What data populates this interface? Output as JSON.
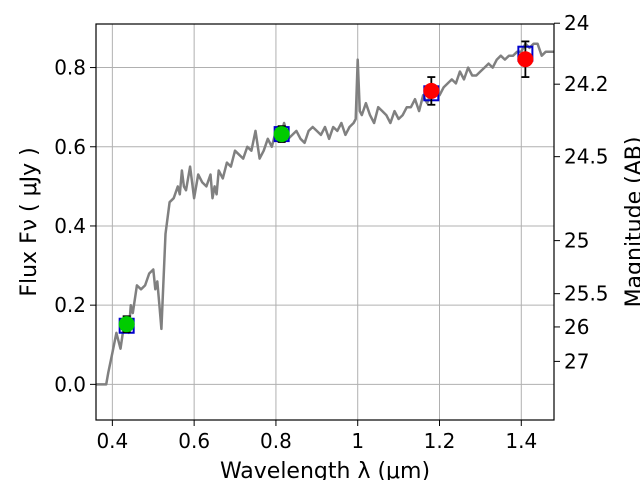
{
  "chart_data": {
    "type": "scatter",
    "xlabel": "Wavelength  λ (μm)",
    "ylabel": "Flux  Fν  ( μJy )",
    "y2label": "Magnitude (AB)",
    "xlim": [
      0.36,
      1.48
    ],
    "ylim": [
      -0.09,
      0.91
    ],
    "grid": true,
    "x_ticks": [
      0.4,
      0.6,
      0.8,
      1.0,
      1.2,
      1.4
    ],
    "x_tick_labels": [
      "0.4",
      "0.6",
      "0.8",
      "1",
      "1.2",
      "1.4"
    ],
    "y_ticks": [
      0.0,
      0.2,
      0.4,
      0.6,
      0.8
    ],
    "y_tick_labels": [
      "0.0",
      "0.2",
      "0.4",
      "0.6",
      "0.8"
    ],
    "y2_ticks": [
      {
        "label": "24",
        "flux": 0.912
      },
      {
        "label": "24.2",
        "flux": 0.758
      },
      {
        "label": "24.5",
        "flux": 0.575
      },
      {
        "label": "25",
        "flux": 0.363
      },
      {
        "label": "25.5",
        "flux": 0.229
      },
      {
        "label": "26",
        "flux": 0.145
      },
      {
        "label": "27",
        "flux": 0.058
      }
    ],
    "model_spectrum": {
      "color": "#808080",
      "x": [
        0.36,
        0.385,
        0.39,
        0.4,
        0.41,
        0.42,
        0.43,
        0.44,
        0.445,
        0.45,
        0.46,
        0.47,
        0.48,
        0.49,
        0.5,
        0.505,
        0.51,
        0.515,
        0.52,
        0.53,
        0.54,
        0.55,
        0.56,
        0.565,
        0.57,
        0.575,
        0.58,
        0.59,
        0.6,
        0.61,
        0.62,
        0.63,
        0.64,
        0.645,
        0.65,
        0.655,
        0.66,
        0.67,
        0.68,
        0.69,
        0.7,
        0.71,
        0.72,
        0.73,
        0.74,
        0.75,
        0.76,
        0.77,
        0.78,
        0.79,
        0.8,
        0.81,
        0.82,
        0.83,
        0.84,
        0.85,
        0.86,
        0.87,
        0.88,
        0.89,
        0.9,
        0.91,
        0.92,
        0.93,
        0.94,
        0.95,
        0.96,
        0.97,
        0.98,
        0.99,
        0.995,
        1.0,
        1.005,
        1.01,
        1.02,
        1.03,
        1.04,
        1.05,
        1.06,
        1.07,
        1.08,
        1.09,
        1.1,
        1.11,
        1.12,
        1.13,
        1.14,
        1.15,
        1.16,
        1.17,
        1.18,
        1.19,
        1.2,
        1.21,
        1.22,
        1.23,
        1.24,
        1.25,
        1.26,
        1.27,
        1.28,
        1.29,
        1.3,
        1.31,
        1.32,
        1.33,
        1.34,
        1.35,
        1.36,
        1.37,
        1.38,
        1.39,
        1.4,
        1.41,
        1.42,
        1.43,
        1.44,
        1.45,
        1.46,
        1.47,
        1.48
      ],
      "y": [
        0.0,
        0.0,
        0.03,
        0.08,
        0.13,
        0.09,
        0.16,
        0.13,
        0.2,
        0.18,
        0.25,
        0.24,
        0.25,
        0.28,
        0.29,
        0.24,
        0.26,
        0.2,
        0.14,
        0.38,
        0.46,
        0.47,
        0.5,
        0.48,
        0.54,
        0.5,
        0.49,
        0.55,
        0.47,
        0.53,
        0.51,
        0.5,
        0.53,
        0.47,
        0.5,
        0.48,
        0.54,
        0.52,
        0.56,
        0.55,
        0.59,
        0.58,
        0.57,
        0.6,
        0.59,
        0.64,
        0.57,
        0.59,
        0.62,
        0.6,
        0.64,
        0.62,
        0.66,
        0.62,
        0.63,
        0.64,
        0.62,
        0.61,
        0.64,
        0.65,
        0.64,
        0.63,
        0.65,
        0.62,
        0.65,
        0.64,
        0.66,
        0.63,
        0.65,
        0.66,
        0.67,
        0.82,
        0.69,
        0.68,
        0.71,
        0.68,
        0.66,
        0.7,
        0.69,
        0.68,
        0.66,
        0.69,
        0.67,
        0.68,
        0.7,
        0.7,
        0.72,
        0.69,
        0.73,
        0.71,
        0.74,
        0.73,
        0.73,
        0.75,
        0.76,
        0.77,
        0.76,
        0.79,
        0.77,
        0.8,
        0.78,
        0.78,
        0.79,
        0.8,
        0.81,
        0.8,
        0.82,
        0.83,
        0.82,
        0.83,
        0.83,
        0.84,
        0.84,
        0.86,
        0.85,
        0.86,
        0.86,
        0.83,
        0.84,
        0.84,
        0.84
      ]
    },
    "model_photometry": {
      "color": "#0000cc",
      "points": [
        {
          "x": 0.435,
          "y": 0.148
        },
        {
          "x": 0.814,
          "y": 0.632
        },
        {
          "x": 1.18,
          "y": 0.735
        },
        {
          "x": 1.41,
          "y": 0.835
        }
      ]
    },
    "observed_points": [
      {
        "x": 0.435,
        "y": 0.152,
        "err": 0.02,
        "color": "#00cc00"
      },
      {
        "x": 0.814,
        "y": 0.632,
        "err": 0.02,
        "color": "#00cc00"
      },
      {
        "x": 1.18,
        "y": 0.741,
        "err": 0.035,
        "color": "#ff0000"
      },
      {
        "x": 1.41,
        "y": 0.821,
        "err": 0.045,
        "color": "#ff0000"
      }
    ],
    "colors": {
      "grid": "#b0b0b0",
      "axis": "#000000",
      "errorbar": "#000000"
    }
  }
}
